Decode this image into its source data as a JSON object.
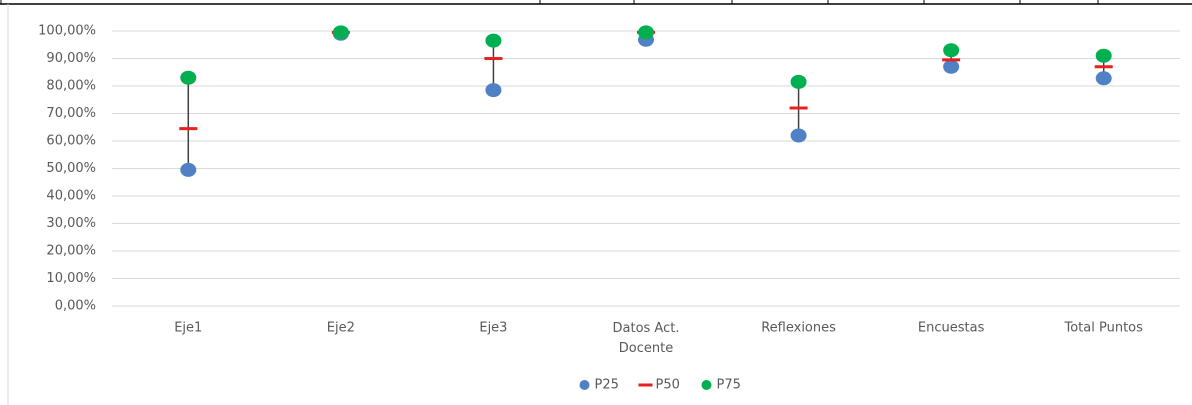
{
  "chart_data": {
    "type": "dot",
    "categories": [
      "Eje1",
      "Eje2",
      "Eje3",
      "Datos Act. Docente",
      "Reflexiones",
      "Encuestas",
      "Total Puntos"
    ],
    "series": [
      {
        "name": "P25",
        "color": "#4f81c4",
        "marker": "circle",
        "values": [
          49.5,
          99,
          78.5,
          96.8,
          62,
          87,
          82.8
        ]
      },
      {
        "name": "P50",
        "color": "#e8201e",
        "marker": "dash",
        "values": [
          64.5,
          99.5,
          90,
          99.5,
          72,
          89.5,
          87
        ]
      },
      {
        "name": "P75",
        "color": "#00b050",
        "marker": "circle",
        "values": [
          83,
          99.5,
          96.5,
          99.5,
          81.5,
          93,
          91
        ]
      }
    ],
    "ylim": [
      0,
      100
    ],
    "yticks": [
      {
        "value": 0,
        "label": "0,00%"
      },
      {
        "value": 10,
        "label": "10,00%"
      },
      {
        "value": 20,
        "label": "20,00%"
      },
      {
        "value": 30,
        "label": "30,00%"
      },
      {
        "value": 40,
        "label": "40,00%"
      },
      {
        "value": 50,
        "label": "50,00%"
      },
      {
        "value": 60,
        "label": "60,00%"
      },
      {
        "value": 70,
        "label": "70,00%"
      },
      {
        "value": 80,
        "label": "80,00%"
      },
      {
        "value": 90,
        "label": "90,00%"
      },
      {
        "value": 100,
        "label": "100,00%"
      }
    ],
    "grid": true,
    "high_low_lines": true,
    "legend": "bottom"
  }
}
